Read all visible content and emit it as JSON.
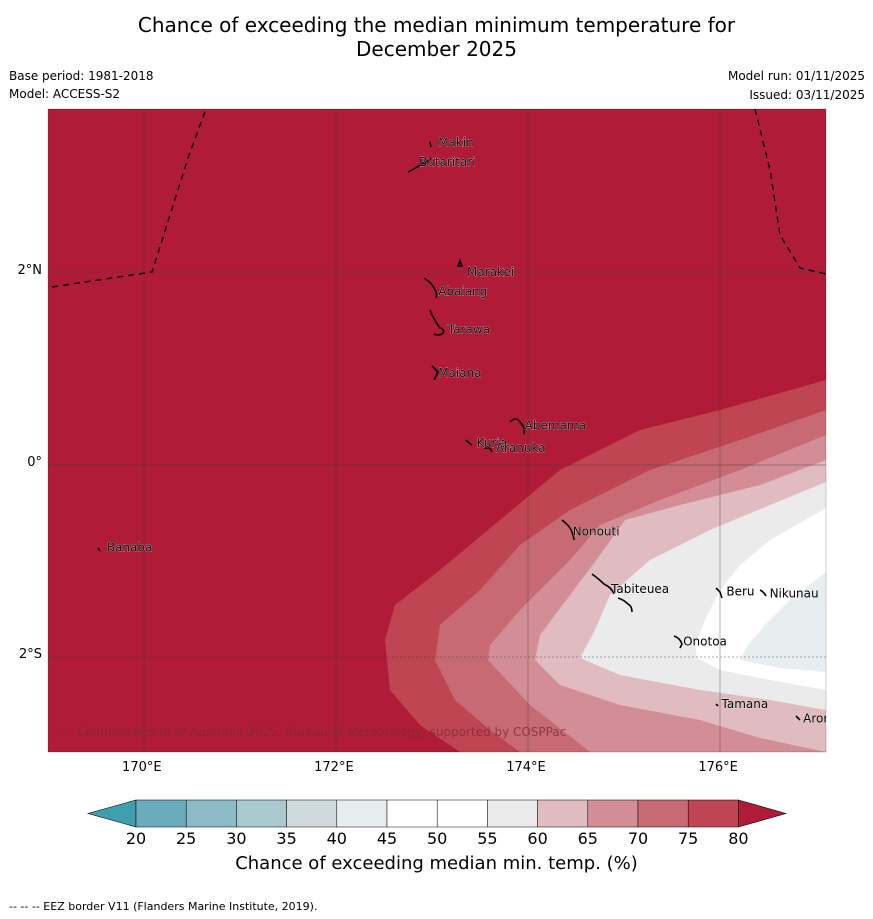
{
  "title": {
    "line1": "Chance of exceeding the median minimum temperature for",
    "line2": "December 2025"
  },
  "meta": {
    "base_period": "Base period: 1981-2018",
    "model": "Model: ACCESS-S2",
    "model_run": "Model run: 01/11/2025",
    "issued": "Issued: 03/11/2025"
  },
  "axes": {
    "lon_labels": [
      "170°E",
      "172°E",
      "174°E",
      "176°E"
    ],
    "lat_labels": [
      "2°N",
      "0°",
      "2°S"
    ]
  },
  "places": [
    {
      "name": "Makin",
      "lon": 173.0,
      "lat": 3.35
    },
    {
      "name": "Butaritari",
      "lon": 172.8,
      "lat": 3.15
    },
    {
      "name": "Marakei",
      "lon": 173.3,
      "lat": 2.0
    },
    {
      "name": "Abaiang",
      "lon": 173.0,
      "lat": 1.8
    },
    {
      "name": "Tarawa",
      "lon": 173.1,
      "lat": 1.4
    },
    {
      "name": "Maiana",
      "lon": 173.0,
      "lat": 0.95
    },
    {
      "name": "Abemama",
      "lon": 173.9,
      "lat": 0.4
    },
    {
      "name": "Kuria",
      "lon": 173.4,
      "lat": 0.22
    },
    {
      "name": "Aranuka",
      "lon": 173.6,
      "lat": 0.17
    },
    {
      "name": "Nonouti",
      "lon": 174.4,
      "lat": -0.7
    },
    {
      "name": "Banaba",
      "lon": 169.55,
      "lat": -0.87
    },
    {
      "name": "Tabiteuea",
      "lon": 174.8,
      "lat": -1.3
    },
    {
      "name": "Beru",
      "lon": 176.0,
      "lat": -1.33
    },
    {
      "name": "Nikunau",
      "lon": 176.45,
      "lat": -1.35
    },
    {
      "name": "Onotoa",
      "lon": 175.55,
      "lat": -1.85
    },
    {
      "name": "Tamana",
      "lon": 175.95,
      "lat": -2.5
    },
    {
      "name": "Arorae",
      "lon": 176.8,
      "lat": -2.65
    }
  ],
  "copyright": "© Commonwealth of Australia 2025, Bureau of Meteorology, supported by COSPPac",
  "colorbar": {
    "ticks": [
      "20",
      "25",
      "30",
      "35",
      "40",
      "45",
      "50",
      "55",
      "60",
      "65",
      "70",
      "75",
      "80"
    ],
    "colors": [
      "#6aacbb",
      "#8dbac6",
      "#a9c9cf",
      "#cfdadd",
      "#e8eef0",
      "#ffffff",
      "#ffffff",
      "#ecebec",
      "#e0bbc0",
      "#d38d96",
      "#c86a74",
      "#bf4552"
    ],
    "low_color": "#3f9fae",
    "high_color": "#b01c37",
    "label": "Chance of exceeding median min. temp. (%)"
  },
  "legend_footnote": "--  --  -- EEZ border V11 (Flanders Marine Institute, 2019).",
  "map_data": {
    "extent": {
      "lon": [
        169.0,
        177.1
      ],
      "lat": [
        -3.0,
        3.7
      ]
    },
    "background_band": "80+",
    "contour_bands": [
      {
        "threshold": "75-80",
        "color": "#bf4552"
      },
      {
        "threshold": "70-75",
        "color": "#c86a74"
      },
      {
        "threshold": "65-70",
        "color": "#d38d96"
      },
      {
        "threshold": "60-65",
        "color": "#e0bbc0"
      },
      {
        "threshold": "55-60",
        "color": "#ecebec"
      },
      {
        "threshold": "45-55",
        "color": "#ffffff"
      },
      {
        "threshold": "40-45",
        "color": "#e8eef0"
      }
    ]
  }
}
